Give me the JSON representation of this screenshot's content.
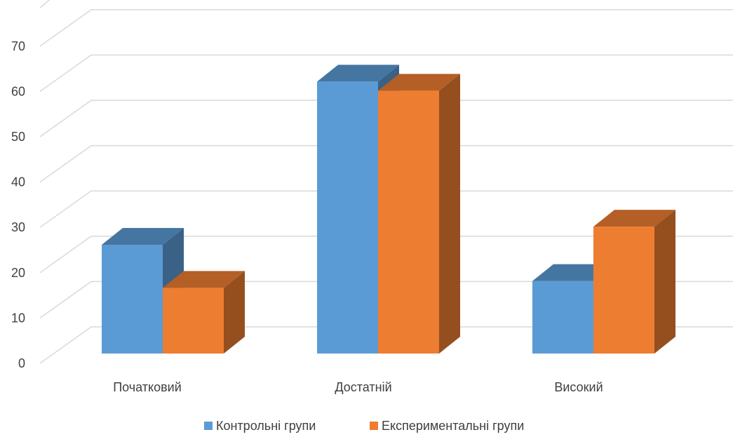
{
  "chart_data": {
    "type": "bar",
    "style": "3d-clustered-column",
    "categories": [
      "Початковий",
      "Достатній",
      "Високий"
    ],
    "series": [
      {
        "name": "Контрольні групи",
        "values": [
          24,
          60,
          16
        ],
        "color": "#5B9BD5"
      },
      {
        "name": "Експериментальні групи",
        "values": [
          14.5,
          58,
          28
        ],
        "color": "#ED7D31"
      }
    ],
    "yticks": [
      "0",
      "10",
      "20",
      "30",
      "40",
      "50",
      "60",
      "70"
    ],
    "ylim": [
      0,
      70
    ],
    "grid": true,
    "legend_position": "bottom"
  }
}
